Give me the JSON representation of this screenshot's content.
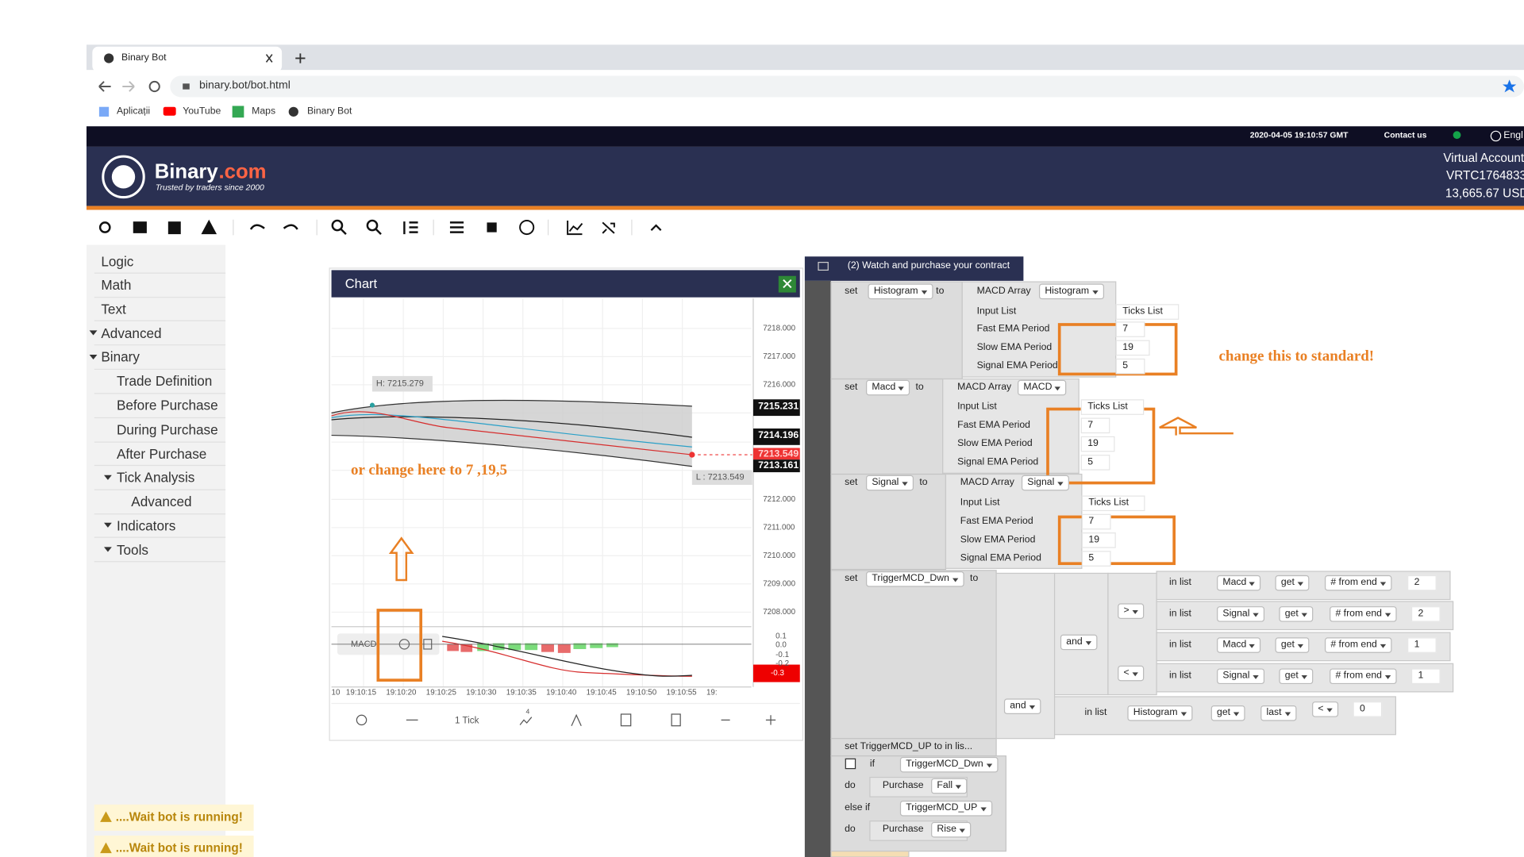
{
  "browser": {
    "tab_title": "Binary Bot",
    "url": "binary.bot/bot.html",
    "bookmarks": [
      "Aplicații",
      "YouTube",
      "Maps",
      "Binary Bot"
    ]
  },
  "header": {
    "datetime": "2020-04-05 19:10:57 GMT",
    "contact": "Contact us",
    "language": "Engl",
    "logo_main": "Binary",
    "logo_suffix": ".com",
    "tagline": "Trusted by traders since 2000",
    "account": [
      "Virtual Account",
      "VRTC1764833",
      "13,665.67 USD"
    ]
  },
  "sidebar": [
    "Logic",
    "Math",
    "Text",
    "Advanced",
    "Binary",
    "Trade Definition",
    "Before Purchase",
    "During Purchase",
    "After Purchase",
    "Tick Analysis",
    "Advanced",
    "Indicators",
    "Tools"
  ],
  "chart": {
    "title": "Chart",
    "high": "H: 7215.279",
    "low": "L : 7213.549",
    "yticks": [
      "7218.000",
      "7217.000",
      "7216.000",
      "7212.000",
      "7211.000",
      "7210.000",
      "7209.000",
      "7208.000"
    ],
    "price_tags": [
      "7215.231",
      "7214.196",
      "7213.549",
      "7213.161"
    ],
    "indicator": "MACD",
    "indicator_ticks": [
      "0.1",
      "0.0",
      "-0.1",
      "-0.2"
    ],
    "indicator_value": "-0.3",
    "xticks": [
      "10",
      "19:10:15",
      "19:10:20",
      "19:10:25",
      "19:10:30",
      "19:10:35",
      "19:10:40",
      "19:10:45",
      "19:10:50",
      "19:10:55",
      "19:"
    ],
    "interval": "1 Tick",
    "chart_type_badge": "4"
  },
  "blocks": {
    "header": "(2) Watch and purchase your contract",
    "labels": [
      "set",
      "Histogram",
      "to",
      "MACD Array",
      "Histogram",
      "Input List",
      "Ticks List",
      "Fast EMA Period",
      "7",
      "Slow EMA Period",
      "19",
      "Signal EMA Period",
      "5",
      "set",
      "Macd",
      "to",
      "MACD Array",
      "MACD",
      "Input List",
      "Ticks List",
      "Fast EMA Period",
      "7",
      "Slow EMA Period",
      "19",
      "Signal EMA Period",
      "5",
      "set",
      "Signal",
      "to",
      "MACD Array",
      "Signal",
      "Input List",
      "Ticks List",
      "Fast EMA Period",
      "7",
      "Slow EMA Period",
      "19",
      "Signal EMA Period",
      "5",
      "set",
      "TriggerMCD_Dwn",
      "to",
      "in list",
      "Macd",
      "get",
      "# from end",
      "2",
      ">",
      "in list",
      "Signal",
      "get",
      "# from end",
      "2",
      "and",
      "in list",
      "Macd",
      "get",
      "# from end",
      "1",
      "<",
      "in list",
      "Signal",
      "get",
      "# from end",
      "1",
      "and",
      "in list",
      "Histogram",
      "get",
      "last",
      "<",
      "0",
      "set TriggerMCD_UP to in lis...",
      "if",
      "TriggerMCD_Dwn",
      "do",
      "Purchase",
      "Fall",
      "else if",
      "TriggerMCD_UP",
      "do",
      "Purchase",
      "Rise"
    ]
  },
  "annotations": [
    "or change here to 7 ,19,5",
    "change this to standard!"
  ],
  "notifications": [
    "....Wait bot is running!",
    "....Wait bot is running!"
  ]
}
